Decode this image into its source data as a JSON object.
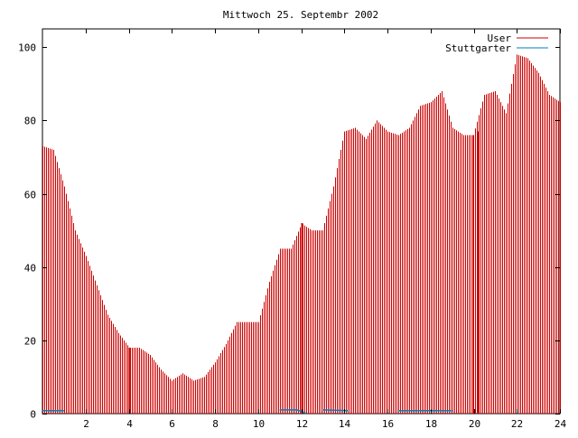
{
  "chart_data": {
    "type": "bar",
    "title": "Mittwoch 25. Septembr 2002",
    "xlabel": "",
    "ylabel": "",
    "xlim": [
      0,
      24
    ],
    "ylim": [
      0,
      105
    ],
    "x_ticks": [
      2,
      4,
      6,
      8,
      10,
      12,
      14,
      16,
      18,
      20,
      22,
      24
    ],
    "y_ticks": [
      0,
      20,
      40,
      60,
      80,
      100
    ],
    "grid": false,
    "legend_position": "top-right",
    "series": [
      {
        "name": "User",
        "color": "#cc0000",
        "x": [
          0,
          0.5,
          1,
          1.5,
          2,
          2.5,
          3,
          3.5,
          4,
          4.5,
          5,
          5.5,
          6,
          6.5,
          7,
          7.5,
          8,
          8.5,
          9,
          9.5,
          10,
          10.5,
          11,
          11.5,
          12,
          12.5,
          13,
          13.5,
          14,
          14.5,
          15,
          15.5,
          16,
          16.5,
          17,
          17.5,
          18,
          18.5,
          19,
          19.5,
          20,
          20.5,
          21,
          21.5,
          22,
          22.5,
          23,
          23.5,
          24
        ],
        "values": [
          73,
          72,
          62,
          50,
          43,
          35,
          27,
          22,
          18,
          18,
          16,
          12,
          9,
          11,
          9,
          10,
          14,
          19,
          25,
          25,
          25,
          36,
          45,
          45,
          52,
          50,
          50,
          62,
          77,
          78,
          75,
          80,
          77,
          76,
          78,
          84,
          85,
          88,
          78,
          76,
          76,
          87,
          88,
          82,
          98,
          97,
          93,
          87,
          85
        ],
        "spikes": [
          {
            "x": 4.0,
            "value": 18
          },
          {
            "x": 12.0,
            "value": 52
          },
          {
            "x": 20.2,
            "value": 77
          }
        ]
      },
      {
        "name": "Stuttgarter",
        "color": "#0080c0",
        "segments": [
          [
            [
              0.0,
              0.8
            ],
            [
              1.0,
              0.8
            ]
          ],
          [
            [
              11.0,
              1.0
            ],
            [
              11.8,
              1.0
            ],
            [
              12.2,
              0.2
            ]
          ],
          [
            [
              13.0,
              1.0
            ],
            [
              14.2,
              0.8
            ]
          ],
          [
            [
              16.5,
              0.8
            ],
            [
              19.0,
              0.8
            ]
          ]
        ]
      }
    ]
  }
}
